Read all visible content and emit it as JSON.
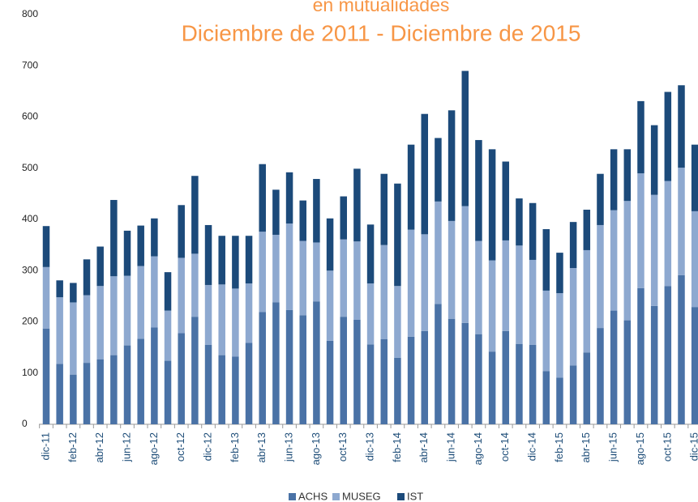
{
  "chart_data": {
    "type": "stacked_bar",
    "title": [
      "en mutualidades",
      "Diciembre de 2011 - Diciembre de 2015"
    ],
    "categories": [
      "dic-11",
      null,
      "feb-12",
      null,
      "abr-12",
      null,
      "jun-12",
      null,
      "ago-12",
      null,
      "oct-12",
      null,
      "dic-12",
      null,
      "feb-13",
      null,
      "abr-13",
      null,
      "jun-13",
      null,
      "ago-13",
      null,
      "oct-13",
      null,
      "dic-13",
      null,
      "feb-14",
      null,
      "abr-14",
      null,
      "jun-14",
      null,
      "ago-14",
      null,
      "oct-14",
      null,
      "dic-14",
      null,
      "feb-15",
      null,
      "abr-15",
      null,
      "jun-15",
      null,
      "ago-15",
      null,
      "oct-15",
      null,
      "dic-15"
    ],
    "series": [
      {
        "name": "ACHS",
        "color": "#4a72a6",
        "values": [
          187,
          118,
          97,
          120,
          127,
          135,
          154,
          167,
          189,
          124,
          178,
          210,
          155,
          135,
          132,
          159,
          219,
          238,
          223,
          213,
          240,
          163,
          210,
          204,
          156,
          166,
          130,
          171,
          182,
          235,
          206,
          198,
          176,
          142,
          182,
          157,
          155,
          104,
          91,
          115,
          140,
          188,
          222,
          203,
          266,
          231,
          270,
          291,
          229
        ]
      },
      {
        "name": "MUSEG",
        "color": "#8ea9d0",
        "values": [
          120,
          130,
          141,
          132,
          143,
          154,
          136,
          142,
          139,
          98,
          147,
          123,
          117,
          138,
          133,
          116,
          157,
          132,
          169,
          145,
          115,
          137,
          151,
          153,
          119,
          184,
          140,
          209,
          189,
          200,
          191,
          228,
          182,
          178,
          177,
          192,
          166,
          157,
          165,
          190,
          200,
          201,
          196,
          233,
          224,
          217,
          205,
          210,
          187
        ]
      },
      {
        "name": "IST",
        "color": "#1c4a7a",
        "values": [
          80,
          33,
          38,
          70,
          77,
          149,
          88,
          79,
          74,
          75,
          103,
          152,
          117,
          95,
          103,
          93,
          132,
          88,
          100,
          79,
          124,
          102,
          84,
          142,
          115,
          139,
          200,
          166,
          235,
          124,
          216,
          264,
          197,
          217,
          154,
          92,
          111,
          120,
          79,
          90,
          79,
          100,
          119,
          101,
          141,
          136,
          174,
          161,
          130
        ]
      }
    ],
    "ylim": [
      0,
      800
    ],
    "yticks": [
      0,
      100,
      200,
      300,
      400,
      500,
      600,
      700,
      800
    ],
    "grid": false,
    "legend": "bottom"
  }
}
